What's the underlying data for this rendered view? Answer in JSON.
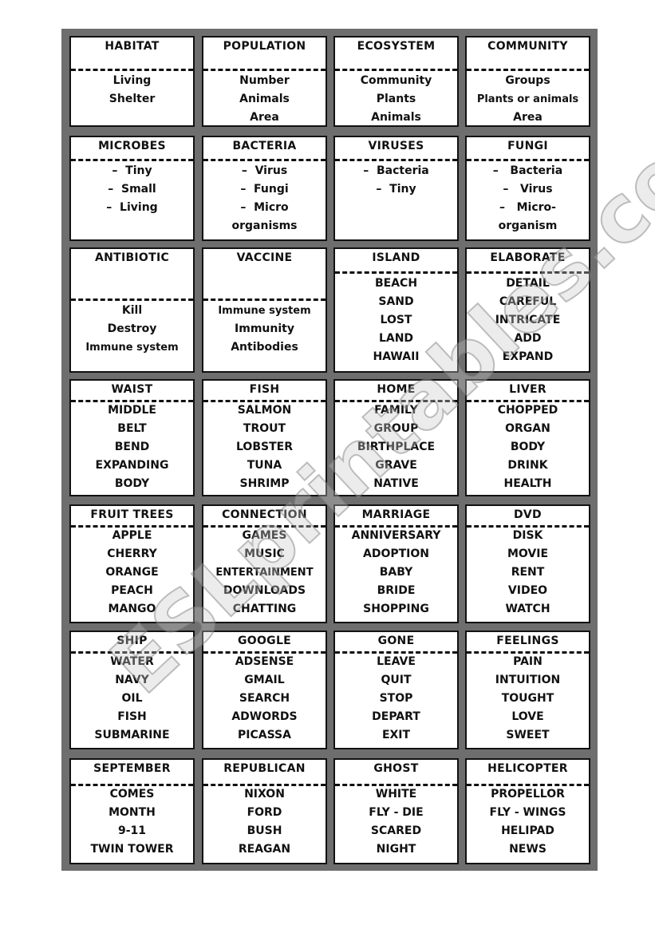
{
  "watermark": "ESLprintables.com",
  "cards": [
    [
      {
        "title": "HABITAT",
        "words": [
          "Living",
          "Shelter"
        ]
      },
      {
        "title": "POPULATION",
        "words": [
          "Number",
          "Animals",
          "Area"
        ]
      },
      {
        "title": "ECOSYSTEM",
        "words": [
          "Community",
          "Plants",
          "Animals"
        ]
      },
      {
        "title": "COMMUNITY",
        "words": [
          "Groups",
          "Plants or animals",
          "Area"
        ]
      }
    ],
    [
      {
        "title": "MICROBES",
        "words": [
          "–  Tiny",
          "–  Small",
          "–  Living"
        ]
      },
      {
        "title": "BACTERIA",
        "words": [
          "–  Virus",
          "–  Fungi",
          "–  Micro",
          "organisms"
        ]
      },
      {
        "title": "VIRUSES",
        "words": [
          "–  Bacteria",
          "–  Tiny"
        ]
      },
      {
        "title": "FUNGI",
        "words": [
          "–   Bacteria",
          "–   Virus",
          "–   Micro-",
          "organism"
        ]
      }
    ],
    [
      {
        "title": "ANTIBIOTIC",
        "words": [
          "Kill",
          "Destroy",
          "Immune system"
        ]
      },
      {
        "title": "VACCINE",
        "words": [
          "Immune system",
          "Immunity",
          "Antibodies"
        ]
      },
      {
        "title": "ISLAND",
        "words": [
          "BEACH",
          "SAND",
          "LOST",
          "LAND",
          "HAWAII"
        ]
      },
      {
        "title": "ELABORATE",
        "words": [
          "DETAIL",
          "CAREFUL",
          "INTRICATE",
          "ADD",
          "EXPAND"
        ]
      }
    ],
    [
      {
        "title": "WAIST",
        "words": [
          "MIDDLE",
          "BELT",
          "BEND",
          "EXPANDING",
          "BODY"
        ]
      },
      {
        "title": "FISH",
        "words": [
          "SALMON",
          "TROUT",
          "LOBSTER",
          "TUNA",
          "SHRIMP"
        ]
      },
      {
        "title": "HOME",
        "words": [
          "FAMILY",
          "GROUP",
          "BIRTHPLACE",
          "GRAVE",
          "NATIVE"
        ]
      },
      {
        "title": "LIVER",
        "words": [
          "CHOPPED",
          "ORGAN",
          "BODY",
          "DRINK",
          "HEALTH"
        ]
      }
    ],
    [
      {
        "title": "FRUIT TREES",
        "words": [
          "APPLE",
          "CHERRY",
          "ORANGE",
          "PEACH",
          "MANGO"
        ]
      },
      {
        "title": "CONNECTION",
        "words": [
          "GAMES",
          "MUSIC",
          "ENTERTAINMENT",
          "DOWNLOADS",
          "CHATTING"
        ]
      },
      {
        "title": "MARRIAGE",
        "words": [
          "ANNIVERSARY",
          "ADOPTION",
          "BABY",
          "BRIDE",
          "SHOPPING"
        ]
      },
      {
        "title": "DVD",
        "words": [
          "DISK",
          "MOVIE",
          "RENT",
          "VIDEO",
          "WATCH"
        ]
      }
    ],
    [
      {
        "title": "SHIP",
        "words": [
          "WATER",
          "NAVY",
          "OIL",
          "FISH",
          "SUBMARINE"
        ]
      },
      {
        "title": "GOOGLE",
        "words": [
          "ADSENSE",
          "GMAIL",
          "SEARCH",
          "ADWORDS",
          "PICASSA"
        ]
      },
      {
        "title": "GONE",
        "words": [
          "LEAVE",
          "QUIT",
          "STOP",
          "DEPART",
          "EXIT"
        ]
      },
      {
        "title": "FEELINGS",
        "words": [
          "PAIN",
          "INTUITION",
          "TOUGHT",
          "LOVE",
          "SWEET"
        ]
      }
    ],
    [
      {
        "title": "SEPTEMBER",
        "words": [
          "COMES",
          "MONTH",
          "9-11",
          "TWIN TOWER"
        ]
      },
      {
        "title": "REPUBLICAN",
        "words": [
          "NIXON",
          "FORD",
          "BUSH",
          "REAGAN"
        ]
      },
      {
        "title": "GHOST",
        "words": [
          "WHITE",
          "FLY - DIE",
          "SCARED",
          "NIGHT"
        ]
      },
      {
        "title": "HELICOPTER",
        "words": [
          "PROPELLOR",
          "FLY - WINGS",
          "HELIPAD",
          "NEWS"
        ]
      }
    ]
  ]
}
